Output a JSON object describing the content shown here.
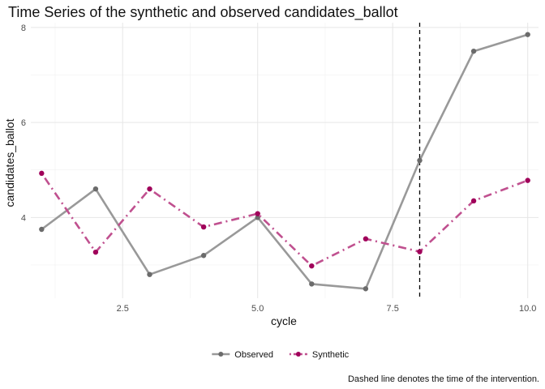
{
  "chart_data": {
    "type": "line",
    "title": "Time Series of the synthetic and observed candidates_ballot",
    "xlabel": "cycle",
    "ylabel": "candidates_ballot",
    "caption": "Dashed line denotes the time of the intervention.",
    "xlim": [
      0.8,
      10.2
    ],
    "ylim": [
      2.3,
      8.1
    ],
    "x_ticks": [
      2.5,
      5.0,
      7.5,
      10.0
    ],
    "x_tick_labels": [
      "2.5",
      "5.0",
      "7.5",
      "10.0"
    ],
    "y_ticks": [
      4,
      6,
      8
    ],
    "y_tick_labels": [
      "4",
      "6",
      "8"
    ],
    "grid": true,
    "legend_position": "bottom",
    "intervention_x": 8,
    "x": [
      1,
      2,
      3,
      4,
      5,
      6,
      7,
      8,
      9,
      10
    ],
    "series": [
      {
        "name": "Observed",
        "color": "#999999",
        "point_color": "#6b6b6b",
        "line_style": "solid",
        "values": [
          3.75,
          4.6,
          2.8,
          3.2,
          4.0,
          2.6,
          2.5,
          5.2,
          7.5,
          7.85
        ]
      },
      {
        "name": "Synthetic",
        "color": "#c0508f",
        "point_color": "#a0005a",
        "line_style": "dotdash",
        "values": [
          4.93,
          3.27,
          4.6,
          3.8,
          4.08,
          2.98,
          3.55,
          3.28,
          4.35,
          4.78
        ]
      }
    ]
  }
}
